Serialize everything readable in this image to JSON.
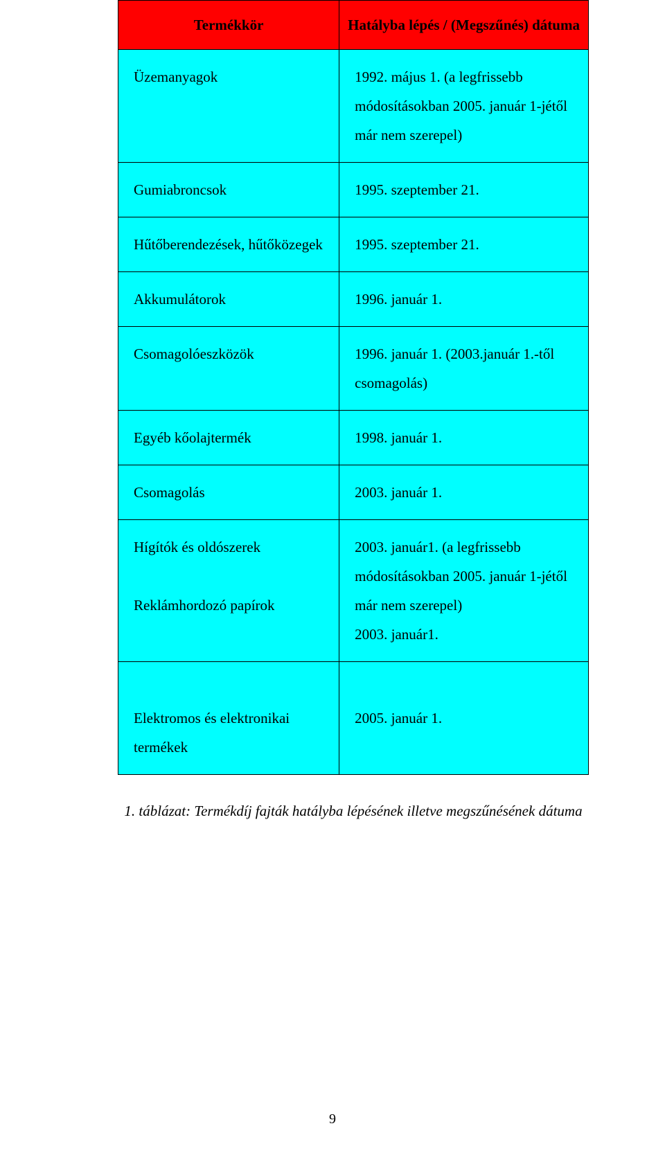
{
  "table": {
    "header": {
      "left": "Termékkör",
      "right": "Hatályba lépés / (Megszűnés) dátuma"
    },
    "rows": [
      {
        "left": "Üzemanyagok",
        "right": "1992. május 1. (a legfrissebb módosításokban 2005. január 1-jétől már nem szerepel)"
      },
      {
        "left": "Gumiabroncsok",
        "right": "1995. szeptember 21."
      },
      {
        "left": "Hűtőberendezések, hűtőközegek",
        "right": "1995. szeptember 21."
      },
      {
        "left": "Akkumulátorok",
        "right": "1996. január 1."
      },
      {
        "left": "Csomagolóeszközök",
        "right": "1996. január 1. (2003.január 1.-től csomagolás)"
      },
      {
        "left": "Egyéb kőolajtermék",
        "right": "1998. január 1."
      },
      {
        "left": "Csomagolás",
        "right": "2003. január 1."
      },
      {
        "left": "Hígítók és oldószerek\n\nReklámhordozó papírok",
        "right": "2003. január1. (a legfrissebb módosításokban 2005. január 1-jétől már nem szerepel)\n2003. január1."
      },
      {
        "left": "\nElektromos és elektronikai termékek",
        "right": "\n2005. január 1."
      }
    ],
    "header_bg": "#ff0000",
    "cell_bg": "#00ffff",
    "border_color": "#000000",
    "font_family": "Times New Roman",
    "font_size_pt": 16
  },
  "caption": "1. táblázat: Termékdíj fajták hatályba lépésének illetve megszűnésének dátuma",
  "page_number": "9"
}
